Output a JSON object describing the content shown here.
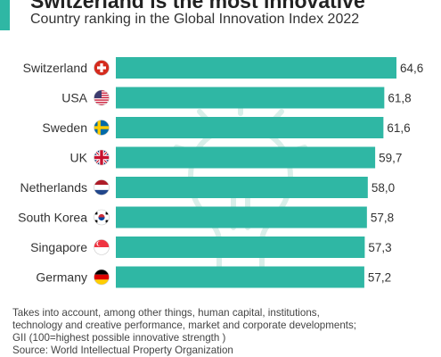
{
  "header": {
    "title": "Switzerland is the most innovative",
    "subtitle": "Country ranking in the Global Innovation Index 2022"
  },
  "colors": {
    "bar": "#2fb7a4",
    "accent": "#2fb7a4",
    "bulb": "#d9eee9"
  },
  "chart_data": {
    "type": "bar",
    "orientation": "horizontal",
    "title": "Switzerland is the most innovative",
    "subtitle": "Country ranking in the Global Innovation Index 2022",
    "categories": [
      "Switzerland",
      "USA",
      "Sweden",
      "UK",
      "Netherlands",
      "South Korea",
      "Singapore",
      "Germany"
    ],
    "values": [
      64.6,
      61.8,
      61.6,
      59.7,
      58.0,
      57.8,
      57.3,
      57.2
    ],
    "value_labels": [
      "64,6",
      "61,8",
      "61,6",
      "59,7",
      "58,0",
      "57,8",
      "57,3",
      "57,2"
    ],
    "flag_icons": [
      "switzerland-flag-icon",
      "usa-flag-icon",
      "sweden-flag-icon",
      "uk-flag-icon",
      "netherlands-flag-icon",
      "south-korea-flag-icon",
      "singapore-flag-icon",
      "germany-flag-icon"
    ],
    "xlim": [
      0,
      64.6
    ],
    "grid": false,
    "legend": "none",
    "xlabel": "",
    "ylabel": ""
  },
  "notes": {
    "line1": "Takes into account, among other things, human capital, institutions,",
    "line2": "technology and creative performance, market and corporate developments;",
    "line3": "GII (100=highest possible innovative strength )",
    "source": "Source: World Intellectual Property Organization"
  }
}
